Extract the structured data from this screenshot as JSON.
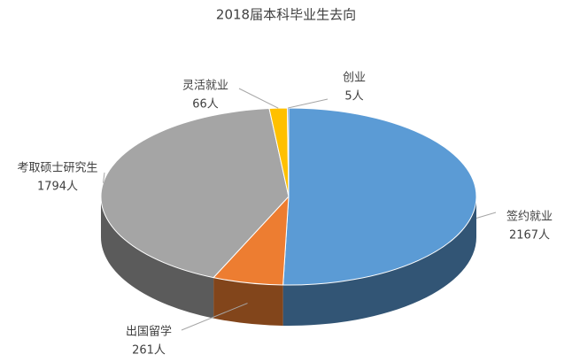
{
  "chart_data": {
    "type": "pie",
    "title": "2018届本科毕业生去向",
    "categories": [
      "签约就业",
      "出国留学",
      "考取硕士研究生",
      "灵活就业",
      "创业"
    ],
    "values": [
      2167,
      261,
      1794,
      66,
      5
    ],
    "value_labels": [
      "2167人",
      "261人",
      "1794人",
      "66人",
      "5人"
    ],
    "colors": [
      "#5b9bd5",
      "#ed7d31",
      "#a5a5a5",
      "#ffc000",
      "#4472c4"
    ]
  }
}
